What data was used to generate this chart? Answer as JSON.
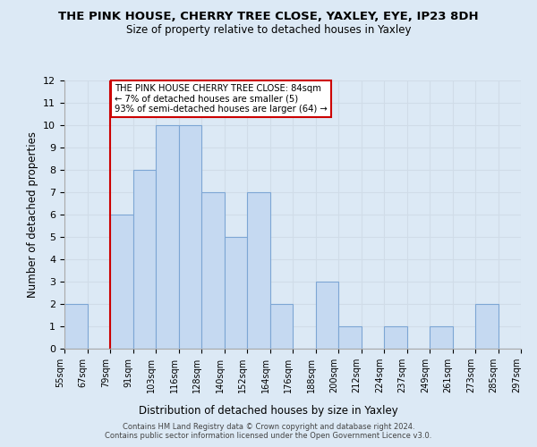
{
  "title": "THE PINK HOUSE, CHERRY TREE CLOSE, YAXLEY, EYE, IP23 8DH",
  "subtitle": "Size of property relative to detached houses in Yaxley",
  "xlabel": "Distribution of detached houses by size in Yaxley",
  "ylabel": "Number of detached properties",
  "bin_labels": [
    "55sqm",
    "67sqm",
    "79sqm",
    "91sqm",
    "103sqm",
    "116sqm",
    "128sqm",
    "140sqm",
    "152sqm",
    "164sqm",
    "176sqm",
    "188sqm",
    "200sqm",
    "212sqm",
    "224sqm",
    "237sqm",
    "249sqm",
    "261sqm",
    "273sqm",
    "285sqm",
    "297sqm"
  ],
  "bar_values": [
    2,
    0,
    6,
    8,
    10,
    10,
    7,
    5,
    7,
    2,
    0,
    3,
    1,
    0,
    1,
    0,
    1,
    0,
    2,
    0
  ],
  "bar_color": "#c5d9f1",
  "bar_edge_color": "#7da6d4",
  "grid_color": "#d0dce8",
  "ylim": [
    0,
    12
  ],
  "yticks": [
    0,
    1,
    2,
    3,
    4,
    5,
    6,
    7,
    8,
    9,
    10,
    11,
    12
  ],
  "vline_x": 2,
  "vline_color": "#cc0000",
  "annotation_text": "THE PINK HOUSE CHERRY TREE CLOSE: 84sqm\n← 7% of detached houses are smaller (5)\n93% of semi-detached houses are larger (64) →",
  "footer_line1": "Contains HM Land Registry data © Crown copyright and database right 2024.",
  "footer_line2": "Contains public sector information licensed under the Open Government Licence v3.0.",
  "background_color": "#dce9f5"
}
